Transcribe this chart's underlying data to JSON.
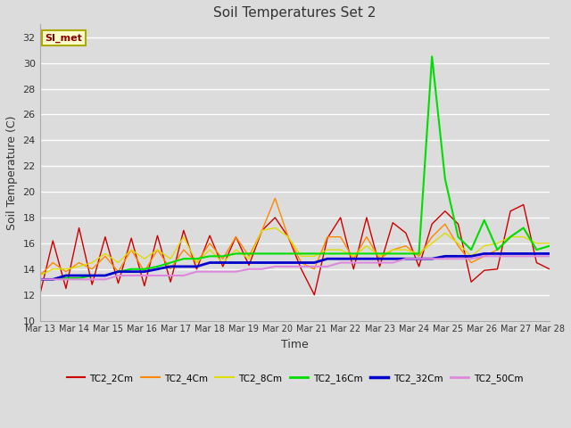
{
  "title": "Soil Temperatures Set 2",
  "xlabel": "Time",
  "ylabel": "Soil Temperature (C)",
  "ylim": [
    10,
    33
  ],
  "yticks": [
    10,
    12,
    14,
    16,
    18,
    20,
    22,
    24,
    26,
    28,
    30,
    32
  ],
  "annotation_text": "SI_met",
  "annotation_bg": "#FFFFCC",
  "annotation_border": "#AAAA00",
  "annotation_text_color": "#880000",
  "fig_bg": "#DCDCDC",
  "plot_bg": "#DCDCDC",
  "series": {
    "TC2_2Cm": {
      "color": "#CC0000",
      "lw": 1.0
    },
    "TC2_4Cm": {
      "color": "#FF8800",
      "lw": 1.0
    },
    "TC2_8Cm": {
      "color": "#DDDD00",
      "lw": 1.0
    },
    "TC2_16Cm": {
      "color": "#00DD00",
      "lw": 1.5
    },
    "TC2_32Cm": {
      "color": "#0000CC",
      "lw": 2.0
    },
    "TC2_50Cm": {
      "color": "#DD88DD",
      "lw": 1.5
    }
  },
  "xtick_labels": [
    "Mar 13",
    "Mar 14",
    "Mar 15",
    "Mar 16",
    "Mar 17",
    "Mar 18",
    "Mar 19",
    "Mar 20",
    "Mar 21",
    "Mar 22",
    "Mar 23",
    "Mar 24",
    "Mar 25",
    "Mar 26",
    "Mar 27",
    "Mar 28"
  ],
  "TC2_2Cm": [
    12.0,
    16.2,
    12.5,
    17.2,
    12.8,
    16.5,
    12.9,
    16.4,
    12.7,
    16.6,
    13.0,
    17.0,
    14.0,
    16.6,
    14.2,
    16.5,
    14.3,
    17.0,
    18.0,
    16.5,
    14.0,
    12.0,
    16.4,
    18.0,
    14.0,
    18.0,
    14.2,
    17.6,
    16.8,
    14.2,
    17.5,
    18.5,
    17.5,
    13.0,
    13.9,
    14.0,
    18.5,
    19.0,
    14.5,
    14.0
  ],
  "TC2_4Cm": [
    13.5,
    14.5,
    13.8,
    14.5,
    14.0,
    15.0,
    13.8,
    15.5,
    13.8,
    15.5,
    14.0,
    15.5,
    14.5,
    16.0,
    14.8,
    16.5,
    15.0,
    17.0,
    19.5,
    16.5,
    14.5,
    14.0,
    16.5,
    16.5,
    14.8,
    16.5,
    14.8,
    15.5,
    15.8,
    15.0,
    16.5,
    17.5,
    15.8,
    14.5,
    15.0,
    15.5,
    16.5,
    17.2,
    15.5,
    15.8
  ],
  "TC2_8Cm": [
    13.5,
    14.0,
    14.0,
    14.2,
    14.5,
    15.2,
    14.5,
    15.5,
    14.8,
    15.5,
    14.8,
    16.5,
    14.5,
    15.5,
    14.5,
    15.5,
    14.8,
    17.0,
    17.2,
    16.5,
    15.0,
    15.0,
    15.5,
    15.5,
    15.0,
    15.8,
    15.0,
    15.5,
    15.5,
    15.2,
    16.0,
    16.8,
    16.0,
    15.0,
    15.8,
    16.0,
    16.5,
    16.5,
    16.0,
    16.0
  ],
  "TC2_16Cm": [
    13.2,
    13.2,
    13.3,
    13.3,
    13.5,
    13.5,
    13.8,
    14.0,
    14.0,
    14.2,
    14.5,
    14.8,
    14.8,
    15.0,
    15.0,
    15.2,
    15.2,
    15.2,
    15.2,
    15.2,
    15.2,
    15.2,
    15.2,
    15.2,
    15.2,
    15.2,
    15.2,
    15.2,
    15.2,
    15.2,
    30.5,
    21.0,
    16.5,
    15.5,
    17.8,
    15.5,
    16.5,
    17.2,
    15.5,
    15.8
  ],
  "TC2_32Cm": [
    13.2,
    13.2,
    13.5,
    13.5,
    13.5,
    13.5,
    13.8,
    13.8,
    13.8,
    14.0,
    14.2,
    14.2,
    14.2,
    14.5,
    14.5,
    14.5,
    14.5,
    14.5,
    14.5,
    14.5,
    14.5,
    14.5,
    14.8,
    14.8,
    14.8,
    14.8,
    14.8,
    14.8,
    14.8,
    14.8,
    14.8,
    15.0,
    15.0,
    15.0,
    15.2,
    15.2,
    15.2,
    15.2,
    15.2,
    15.2
  ],
  "TC2_50Cm": [
    13.2,
    13.2,
    13.2,
    13.2,
    13.2,
    13.2,
    13.5,
    13.5,
    13.5,
    13.5,
    13.5,
    13.5,
    13.8,
    13.8,
    13.8,
    13.8,
    14.0,
    14.0,
    14.2,
    14.2,
    14.2,
    14.2,
    14.2,
    14.5,
    14.5,
    14.5,
    14.5,
    14.5,
    14.8,
    14.8,
    14.8,
    14.8,
    14.8,
    14.8,
    15.0,
    15.0,
    15.0,
    15.0,
    15.0,
    15.0
  ]
}
